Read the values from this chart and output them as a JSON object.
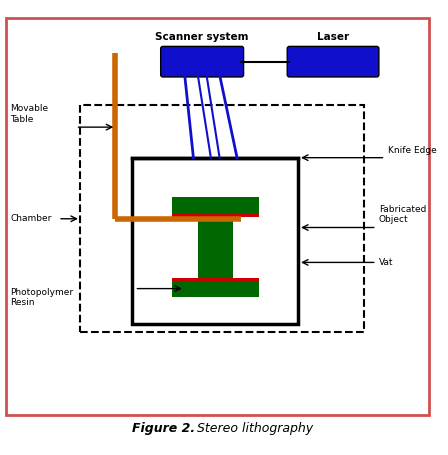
{
  "title": "Figure 2.",
  "subtitle": " Stereo lithography",
  "background": "#ffffff",
  "border_color": "#d05050",
  "colors": {
    "blue": "#1010cc",
    "orange": "#cc6600",
    "dark_green": "#006600",
    "red": "#cc0000",
    "black": "#000000"
  },
  "labels": {
    "scanner": "Scanner system",
    "laser": "Laser",
    "movable_table": "Movable\nTable",
    "chamber": "Chamber",
    "knife_edge": "Knife Edge",
    "fabricated_object": "Fabricated\nObject",
    "vat": "Vat",
    "photopolymer": "Photopolymer\nResin"
  }
}
